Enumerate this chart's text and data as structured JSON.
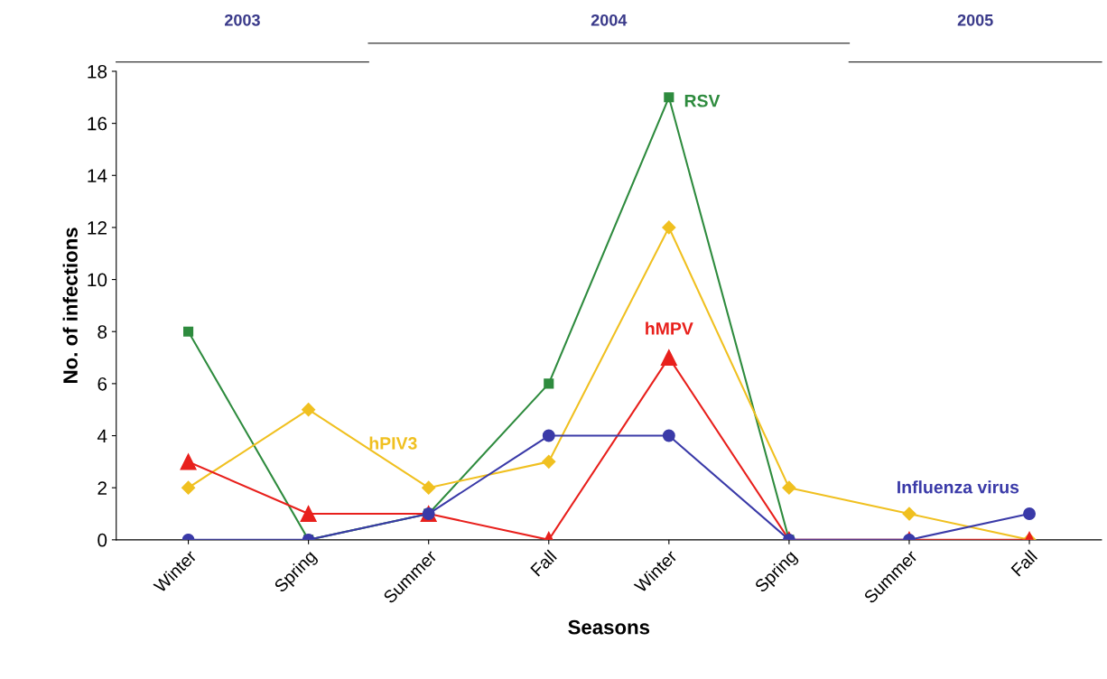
{
  "chart_data": {
    "type": "line",
    "xlabel": "Seasons",
    "ylabel": "No. of infections",
    "categories": [
      "Winter",
      "Spring",
      "Summer",
      "Fall",
      "Winter",
      "Spring",
      "Summer",
      "Fall"
    ],
    "series": [
      {
        "name": "RSV",
        "color": "#2e8b3e",
        "marker": "square",
        "values": [
          8,
          0,
          1,
          6,
          17,
          0,
          null,
          null
        ]
      },
      {
        "name": "hPIV3",
        "color": "#f0c020",
        "marker": "diamond",
        "values": [
          2,
          5,
          2,
          3,
          12,
          2,
          1,
          0
        ]
      },
      {
        "name": "hMPV",
        "color": "#e8201c",
        "marker": "triangle",
        "values": [
          3,
          1,
          1,
          0,
          7,
          0,
          0,
          0
        ]
      },
      {
        "name": "Influenza virus",
        "color": "#3a3aa8",
        "marker": "circle",
        "values": [
          0,
          0,
          1,
          4,
          4,
          0,
          0,
          1
        ]
      }
    ],
    "ylim": [
      0,
      18
    ],
    "yticks": [
      0,
      2,
      4,
      6,
      8,
      10,
      12,
      14,
      16,
      18
    ],
    "annotations": [
      "2003",
      "2004",
      "2005"
    ],
    "grid": false,
    "legend": false,
    "line_style": "solid"
  }
}
